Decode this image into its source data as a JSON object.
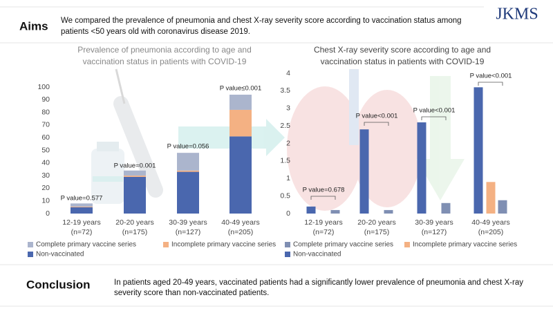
{
  "header": {
    "heading": "Aims",
    "text_lines": [
      "We compared the prevalence of pneumonia and chest X-ray severity score according to vaccination status among",
      "patients <50 years old with coronavirus disease 2019."
    ],
    "logo": "JKMS"
  },
  "chart_data": [
    {
      "type": "stacked-bar",
      "title_lines": [
        "Prevalence of pneumonia according to age and",
        "vaccination status in patients with COVID-19"
      ],
      "categories": [
        "12-19 years",
        "20-20 years",
        "30-39 years",
        "40-49 years"
      ],
      "sample_sizes": [
        "(n=72)",
        "(n=175)",
        "(n=127)",
        "(n=205)"
      ],
      "annotations": [
        "P value=0.577",
        "P value=0.001",
        "P value=0.056",
        "P value≤0.001"
      ],
      "series": [
        {
          "name": "Complete primary vaccine series",
          "color": "#abb5cd",
          "values": [
            2.5,
            4,
            14,
            12
          ]
        },
        {
          "name": "Incomplete primary vaccine series",
          "color": "#f4b183",
          "values": [
            0.5,
            1,
            1,
            21
          ]
        },
        {
          "name": "Non-vaccinated",
          "color": "#4a67ae",
          "values": [
            5,
            29,
            33,
            61
          ]
        }
      ],
      "ylim": [
        0,
        100
      ],
      "yticks": [
        0,
        10,
        20,
        30,
        40,
        50,
        60,
        70,
        80,
        90,
        100
      ]
    },
    {
      "type": "grouped-bar",
      "title_lines": [
        "Chest X-ray severity score according to age and",
        "vaccination status in patients with COVID-19"
      ],
      "categories": [
        "12-19 years",
        "20-20 years",
        "30-39 years",
        "40-49 years"
      ],
      "sample_sizes": [
        "(n=72)",
        "(n=175)",
        "(n=127)",
        "(n=205)"
      ],
      "annotations": [
        "P value=0.678",
        "P value<0.001",
        "P value<0.001",
        "P value<0.001"
      ],
      "series": [
        {
          "name": "Non-vaccinated",
          "color": "#4a67ae",
          "values": [
            0.2,
            2.4,
            2.6,
            3.6
          ]
        },
        {
          "name": "Incomplete primary vaccine series",
          "color": "#f4b183",
          "values": [
            null,
            null,
            null,
            0.9
          ]
        },
        {
          "name": "Complete primary vaccine series",
          "color": "#7f8fb3",
          "values": [
            0.1,
            0.1,
            0.3,
            0.38
          ]
        }
      ],
      "ylim": [
        0,
        4
      ],
      "yticks": [
        0,
        0.5,
        1,
        1.5,
        2,
        2.5,
        3,
        3.5,
        4
      ]
    }
  ],
  "conclusion": {
    "heading": "Conclusion",
    "text_lines": [
      "In patients aged 20-49 years, vaccinated patients had a significantly lower prevalence of pneumonia and chest X-ray",
      "severity score than non-vaccinated patients."
    ]
  }
}
